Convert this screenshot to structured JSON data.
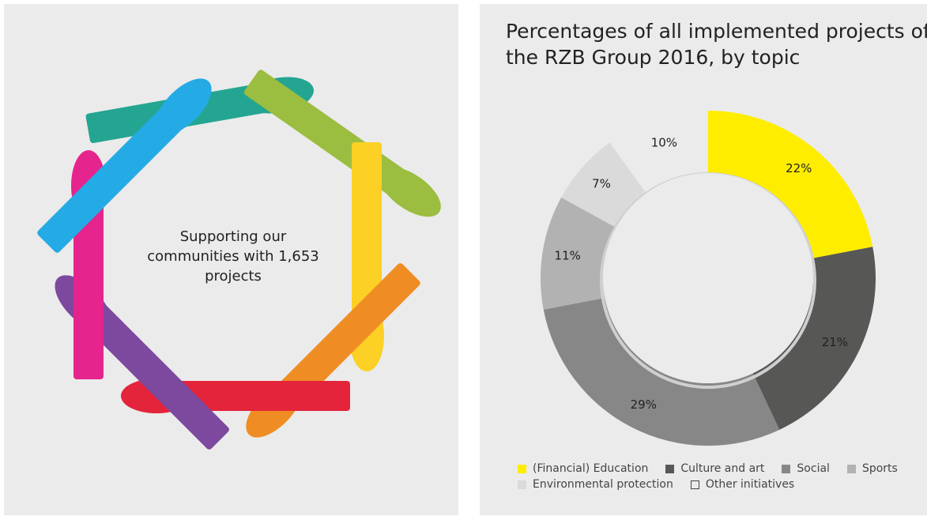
{
  "left_panel": {
    "text": "Supporting our communities with 1,653 projects"
  },
  "chart_data": {
    "type": "donut",
    "title": "Percentages of all implemented projects of the RZB Group 2016, by topic",
    "categories": [
      "(Financial) Education",
      "Culture and art",
      "Social",
      "Sports",
      "Environmental protection",
      "Other initiatives"
    ],
    "values": [
      22,
      21,
      29,
      11,
      7,
      10
    ],
    "value_labels": [
      "22%",
      "21%",
      "29%",
      "11%",
      "7%",
      "10%"
    ],
    "colors": [
      "#ffed00",
      "#575756",
      "#878787",
      "#b2b2b2",
      "#dadada",
      "#ebebeb"
    ],
    "legend": "bottom"
  }
}
